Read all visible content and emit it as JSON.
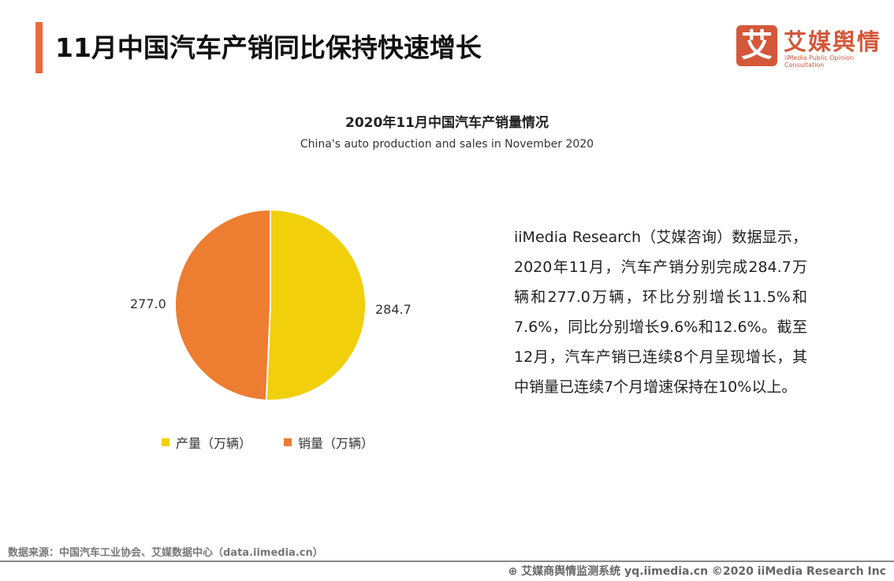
{
  "header": {
    "title": "11月中国汽车产销同比保持快速增长"
  },
  "logo": {
    "mark": "艾",
    "cn": "艾媒舆情",
    "en": "iiMedia Public Opinion Consultation"
  },
  "chart_data": {
    "type": "pie",
    "title": "2020年11月中国汽车产销量情况",
    "subtitle": "China's auto production and sales in November 2020",
    "categories": [
      "产量（万辆）",
      "销量（万辆）"
    ],
    "values": [
      284.7,
      277.0
    ],
    "labels": [
      "284.7",
      "277.0"
    ],
    "colors": [
      "#f2cf0b",
      "#ed7d31"
    ],
    "legend": "bottom"
  },
  "description": "iiMedia Research（艾媒咨询）数据显示，2020年11月，汽车产销分别完成284.7万辆和277.0万辆，环比分别增长11.5%和7.6%，同比分别增长9.6%和12.6%。截至12月，汽车产销已连续8个月呈现增长，其中销量已连续7个月增速保持在10%以上。",
  "source": "数据来源：中国汽车工业协会、艾媒数据中心（data.iimedia.cn）",
  "footer": "艾媒商舆情监测系统 yq.iimedia.cn  ©2020  iiMedia Research  Inc"
}
